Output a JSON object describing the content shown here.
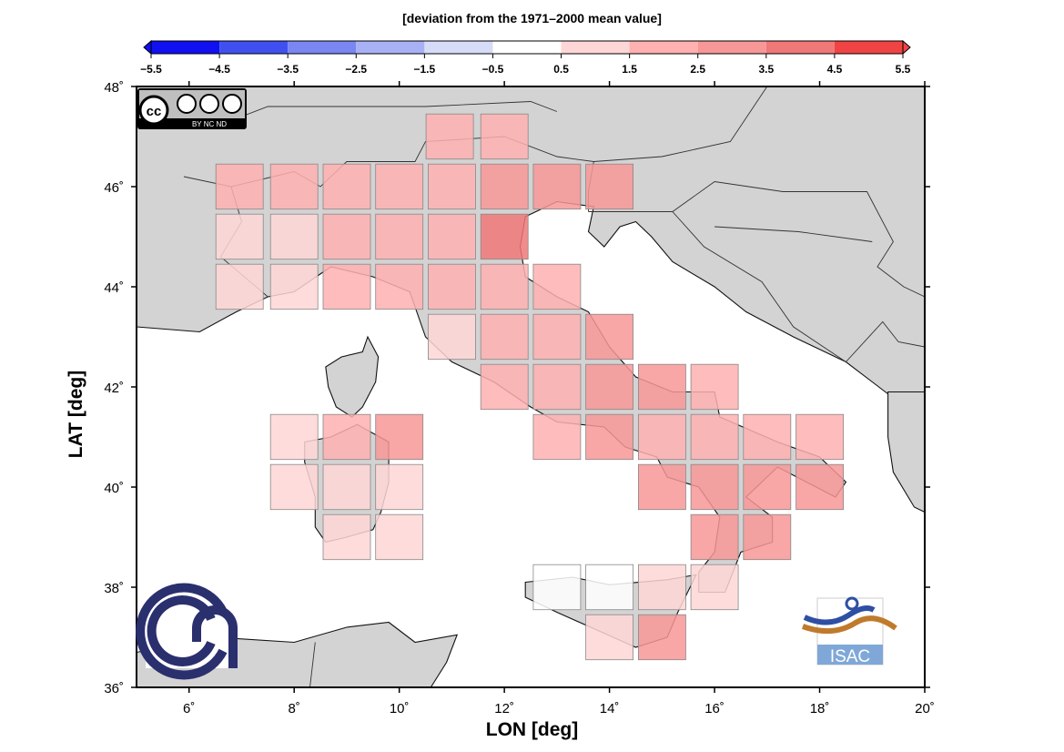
{
  "title": "[deviation from the 1971–2000 mean value]",
  "x_axis_label": "LON [deg]",
  "y_axis_label": "LAT [deg]",
  "x_ticks": [
    {
      "value": 6,
      "label": "6˚"
    },
    {
      "value": 8,
      "label": "8˚"
    },
    {
      "value": 10,
      "label": "10˚"
    },
    {
      "value": 12,
      "label": "12˚"
    },
    {
      "value": 14,
      "label": "14˚"
    },
    {
      "value": 16,
      "label": "16˚"
    },
    {
      "value": 18,
      "label": "18˚"
    },
    {
      "value": 20,
      "label": "20˚"
    }
  ],
  "y_ticks": [
    {
      "value": 36,
      "label": "36˚"
    },
    {
      "value": 38,
      "label": "38˚"
    },
    {
      "value": 40,
      "label": "40˚"
    },
    {
      "value": 42,
      "label": "42˚"
    },
    {
      "value": 44,
      "label": "44˚"
    },
    {
      "value": 46,
      "label": "46˚"
    },
    {
      "value": 48,
      "label": "48˚"
    }
  ],
  "extent": {
    "lon": [
      5,
      20
    ],
    "lat": [
      36,
      48
    ]
  },
  "colorbar": {
    "ticks": [
      "−5.5",
      "−4.5",
      "−3.5",
      "−2.5",
      "−1.5",
      "−0.5",
      "0.5",
      "1.5",
      "2.5",
      "3.5",
      "4.5",
      "5.5"
    ],
    "colors": [
      "#1010f0",
      "#4050f0",
      "#7a86f2",
      "#a9b1f5",
      "#d6dbf8",
      "#ffffff",
      "#ffd6d6",
      "#ffb0b0",
      "#f79797",
      "#f07878",
      "#f04444"
    ]
  },
  "colors": {
    "land": "#d3d3d3",
    "sea": "#ffffff",
    "cell_border": "#888888"
  },
  "logos": {
    "license": {
      "icon": "cc-by-nc-nd-icon",
      "text": "BY NC ND"
    },
    "institution_left": {
      "icon": "cnr-logo-icon"
    },
    "institution_right": {
      "icon": "isac-logo-icon",
      "text": "ISAC"
    }
  },
  "chart_data": {
    "type": "heatmap",
    "description_units": "deviation from the 1971–2000 mean value",
    "cells": [
      {
        "lon": 10.96,
        "lat": 47.0,
        "value": 1.6
      },
      {
        "lon": 12.0,
        "lat": 47.0,
        "value": 1.8
      },
      {
        "lon": 6.96,
        "lat": 46.0,
        "value": 2.0
      },
      {
        "lon": 8.0,
        "lat": 46.0,
        "value": 1.9
      },
      {
        "lon": 9.0,
        "lat": 46.0,
        "value": 1.9
      },
      {
        "lon": 10.0,
        "lat": 46.0,
        "value": 1.8
      },
      {
        "lon": 11.0,
        "lat": 46.0,
        "value": 1.9
      },
      {
        "lon": 12.0,
        "lat": 46.0,
        "value": 3.4
      },
      {
        "lon": 13.0,
        "lat": 46.0,
        "value": 3.0
      },
      {
        "lon": 14.0,
        "lat": 46.0,
        "value": 3.2
      },
      {
        "lon": 6.96,
        "lat": 45.0,
        "value": 1.2
      },
      {
        "lon": 8.0,
        "lat": 45.0,
        "value": 1.2
      },
      {
        "lon": 9.0,
        "lat": 45.0,
        "value": 2.2
      },
      {
        "lon": 10.0,
        "lat": 45.0,
        "value": 2.0
      },
      {
        "lon": 11.0,
        "lat": 45.0,
        "value": 2.0
      },
      {
        "lon": 12.0,
        "lat": 45.0,
        "value": 3.6
      },
      {
        "lon": 6.96,
        "lat": 44.0,
        "value": 1.2
      },
      {
        "lon": 8.0,
        "lat": 44.0,
        "value": 1.2
      },
      {
        "lon": 9.0,
        "lat": 44.0,
        "value": 2.2
      },
      {
        "lon": 10.0,
        "lat": 44.0,
        "value": 2.2
      },
      {
        "lon": 11.0,
        "lat": 44.0,
        "value": 2.1
      },
      {
        "lon": 12.0,
        "lat": 44.0,
        "value": 2.0
      },
      {
        "lon": 13.0,
        "lat": 44.0,
        "value": 1.8
      },
      {
        "lon": 11.0,
        "lat": 43.0,
        "value": 1.1
      },
      {
        "lon": 12.0,
        "lat": 43.0,
        "value": 2.0
      },
      {
        "lon": 13.0,
        "lat": 43.0,
        "value": 2.1
      },
      {
        "lon": 14.0,
        "lat": 43.0,
        "value": 3.2
      },
      {
        "lon": 12.0,
        "lat": 42.0,
        "value": 2.0
      },
      {
        "lon": 13.0,
        "lat": 42.0,
        "value": 2.0
      },
      {
        "lon": 14.0,
        "lat": 42.0,
        "value": 3.3
      },
      {
        "lon": 15.0,
        "lat": 42.0,
        "value": 3.3
      },
      {
        "lon": 16.0,
        "lat": 42.0,
        "value": 2.0
      },
      {
        "lon": 8.0,
        "lat": 41.0,
        "value": 1.2
      },
      {
        "lon": 9.0,
        "lat": 41.0,
        "value": 2.3
      },
      {
        "lon": 10.0,
        "lat": 41.0,
        "value": 2.5
      },
      {
        "lon": 13.0,
        "lat": 41.0,
        "value": 2.3
      },
      {
        "lon": 14.0,
        "lat": 41.0,
        "value": 3.3
      },
      {
        "lon": 15.0,
        "lat": 41.0,
        "value": 2.1
      },
      {
        "lon": 16.0,
        "lat": 41.0,
        "value": 2.0
      },
      {
        "lon": 17.0,
        "lat": 41.0,
        "value": 2.2
      },
      {
        "lon": 18.0,
        "lat": 41.0,
        "value": 2.3
      },
      {
        "lon": 8.0,
        "lat": 40.0,
        "value": 1.0
      },
      {
        "lon": 9.0,
        "lat": 40.0,
        "value": 1.1
      },
      {
        "lon": 10.0,
        "lat": 40.0,
        "value": 1.0
      },
      {
        "lon": 15.0,
        "lat": 40.0,
        "value": 2.6
      },
      {
        "lon": 16.0,
        "lat": 40.0,
        "value": 2.6
      },
      {
        "lon": 17.0,
        "lat": 40.0,
        "value": 3.4
      },
      {
        "lon": 18.0,
        "lat": 40.0,
        "value": 2.7
      },
      {
        "lon": 9.0,
        "lat": 39.0,
        "value": 1.2
      },
      {
        "lon": 10.0,
        "lat": 39.0,
        "value": 1.2
      },
      {
        "lon": 16.0,
        "lat": 39.0,
        "value": 2.6
      },
      {
        "lon": 17.0,
        "lat": 39.0,
        "value": 2.5
      },
      {
        "lon": 13.0,
        "lat": 38.0,
        "value": 0.0
      },
      {
        "lon": 14.0,
        "lat": 38.0,
        "value": 0.0
      },
      {
        "lon": 15.0,
        "lat": 38.0,
        "value": 1.2
      },
      {
        "lon": 16.0,
        "lat": 38.0,
        "value": 1.2
      },
      {
        "lon": 14.0,
        "lat": 37.0,
        "value": 1.2
      },
      {
        "lon": 15.0,
        "lat": 37.0,
        "value": 2.6
      }
    ]
  }
}
